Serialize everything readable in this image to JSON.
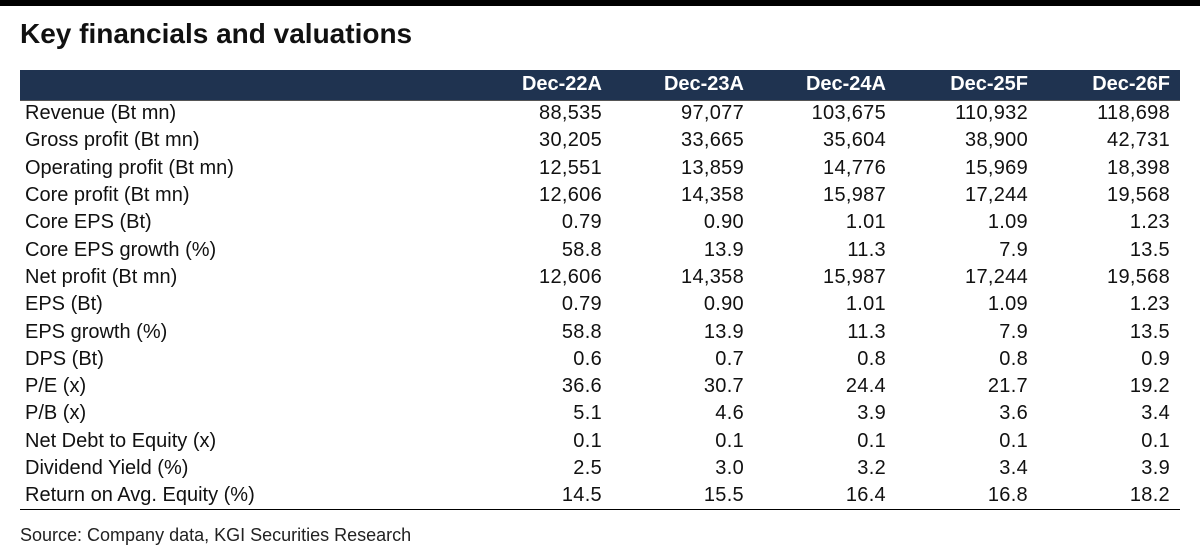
{
  "title": "Key financials and valuations",
  "columns": [
    "Dec-22A",
    "Dec-23A",
    "Dec-24A",
    "Dec-25F",
    "Dec-26F"
  ],
  "rows": [
    {
      "label": "Revenue (Bt mn)",
      "values": [
        "88,535",
        "97,077",
        "103,675",
        "110,932",
        "118,698"
      ]
    },
    {
      "label": "Gross profit (Bt mn)",
      "values": [
        "30,205",
        "33,665",
        "35,604",
        "38,900",
        "42,731"
      ]
    },
    {
      "label": "Operating profit (Bt mn)",
      "values": [
        "12,551",
        "13,859",
        "14,776",
        "15,969",
        "18,398"
      ]
    },
    {
      "label": "Core profit (Bt mn)",
      "values": [
        "12,606",
        "14,358",
        "15,987",
        "17,244",
        "19,568"
      ]
    },
    {
      "label": "Core EPS (Bt)",
      "values": [
        "0.79",
        "0.90",
        "1.01",
        "1.09",
        "1.23"
      ]
    },
    {
      "label": "Core EPS growth (%)",
      "values": [
        "58.8",
        "13.9",
        "11.3",
        "7.9",
        "13.5"
      ]
    },
    {
      "label": "Net profit (Bt mn)",
      "values": [
        "12,606",
        "14,358",
        "15,987",
        "17,244",
        "19,568"
      ]
    },
    {
      "label": "EPS (Bt)",
      "values": [
        "0.79",
        "0.90",
        "1.01",
        "1.09",
        "1.23"
      ]
    },
    {
      "label": "EPS growth (%)",
      "values": [
        "58.8",
        "13.9",
        "11.3",
        "7.9",
        "13.5"
      ]
    },
    {
      "label": "DPS (Bt)",
      "values": [
        "0.6",
        "0.7",
        "0.8",
        "0.8",
        "0.9"
      ]
    },
    {
      "label": "P/E (x)",
      "values": [
        "36.6",
        "30.7",
        "24.4",
        "21.7",
        "19.2"
      ]
    },
    {
      "label": "P/B (x)",
      "values": [
        "5.1",
        "4.6",
        "3.9",
        "3.6",
        "3.4"
      ]
    },
    {
      "label": "Net Debt to Equity (x)",
      "values": [
        "0.1",
        "0.1",
        "0.1",
        "0.1",
        "0.1"
      ]
    },
    {
      "label": "Dividend Yield (%)",
      "values": [
        "2.5",
        "3.0",
        "3.2",
        "3.4",
        "3.9"
      ]
    },
    {
      "label": "Return on Avg. Equity (%)",
      "values": [
        "14.5",
        "15.5",
        "16.4",
        "16.8",
        "18.2"
      ]
    }
  ],
  "source": "Source: Company data, KGI Securities Research",
  "colors": {
    "header_bg": "#1f3350",
    "header_text": "#ffffff",
    "rule": "#000000"
  }
}
